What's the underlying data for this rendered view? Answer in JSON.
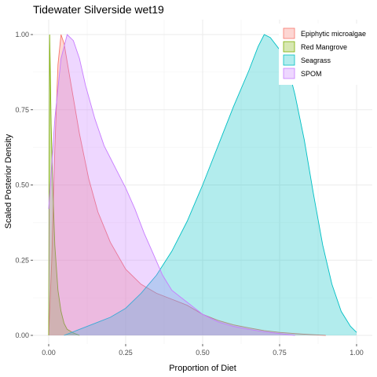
{
  "chart_data": {
    "type": "area",
    "title": "Tidewater Silverside wet19",
    "xlabel": "Proportion of Diet",
    "ylabel": "Scaled Posterior Density",
    "xlim": [
      0,
      1
    ],
    "ylim": [
      0,
      1
    ],
    "x_ticks": [
      0,
      0.25,
      0.5,
      0.75,
      1
    ],
    "x_tick_labels": [
      "0.00",
      "0.25",
      "0.50",
      "0.75",
      "1.00"
    ],
    "y_ticks": [
      0,
      0.25,
      0.5,
      0.75,
      1
    ],
    "y_tick_labels": [
      "0.00",
      "0.25",
      "0.50",
      "0.75",
      "1.00"
    ],
    "grid": true,
    "legend_position": "top-right",
    "series": [
      {
        "name": "Epiphytic microalgae",
        "fill": "#f8766d",
        "line": "#f8766d",
        "points": [
          [
            0.0,
            0.0
          ],
          [
            0.01,
            0.25
          ],
          [
            0.02,
            0.62
          ],
          [
            0.03,
            0.9
          ],
          [
            0.04,
            1.0
          ],
          [
            0.05,
            0.97
          ],
          [
            0.07,
            0.85
          ],
          [
            0.1,
            0.67
          ],
          [
            0.13,
            0.52
          ],
          [
            0.16,
            0.41
          ],
          [
            0.2,
            0.31
          ],
          [
            0.25,
            0.22
          ],
          [
            0.3,
            0.17
          ],
          [
            0.35,
            0.14
          ],
          [
            0.4,
            0.12
          ],
          [
            0.45,
            0.1
          ],
          [
            0.5,
            0.07
          ],
          [
            0.55,
            0.05
          ],
          [
            0.6,
            0.035
          ],
          [
            0.65,
            0.025
          ],
          [
            0.7,
            0.016
          ],
          [
            0.75,
            0.01
          ],
          [
            0.8,
            0.006
          ],
          [
            0.85,
            0.003
          ],
          [
            0.9,
            0.0
          ]
        ]
      },
      {
        "name": "Red Mangrove",
        "fill": "#7cae00",
        "line": "#7cae00",
        "points": [
          [
            0.0,
            0.0
          ],
          [
            0.003,
            1.0
          ],
          [
            0.008,
            0.7
          ],
          [
            0.013,
            0.5
          ],
          [
            0.02,
            0.3
          ],
          [
            0.03,
            0.15
          ],
          [
            0.04,
            0.08
          ],
          [
            0.05,
            0.04
          ],
          [
            0.06,
            0.02
          ],
          [
            0.08,
            0.008
          ],
          [
            0.1,
            0.0
          ]
        ]
      },
      {
        "name": "Seagrass",
        "fill": "#00bfc4",
        "line": "#00bfc4",
        "points": [
          [
            0.05,
            0.0
          ],
          [
            0.1,
            0.02
          ],
          [
            0.15,
            0.04
          ],
          [
            0.2,
            0.06
          ],
          [
            0.25,
            0.09
          ],
          [
            0.3,
            0.14
          ],
          [
            0.35,
            0.2
          ],
          [
            0.4,
            0.28
          ],
          [
            0.45,
            0.38
          ],
          [
            0.5,
            0.5
          ],
          [
            0.55,
            0.63
          ],
          [
            0.6,
            0.76
          ],
          [
            0.65,
            0.88
          ],
          [
            0.68,
            0.96
          ],
          [
            0.7,
            1.0
          ],
          [
            0.72,
            0.99
          ],
          [
            0.75,
            0.95
          ],
          [
            0.78,
            0.88
          ],
          [
            0.8,
            0.8
          ],
          [
            0.83,
            0.65
          ],
          [
            0.86,
            0.47
          ],
          [
            0.89,
            0.3
          ],
          [
            0.92,
            0.17
          ],
          [
            0.95,
            0.08
          ],
          [
            0.98,
            0.03
          ],
          [
            1.0,
            0.01
          ]
        ]
      },
      {
        "name": "SPOM",
        "fill": "#c77cff",
        "line": "#c77cff",
        "points": [
          [
            0.0,
            0.42
          ],
          [
            0.02,
            0.72
          ],
          [
            0.04,
            0.92
          ],
          [
            0.06,
            1.0
          ],
          [
            0.08,
            0.98
          ],
          [
            0.1,
            0.92
          ],
          [
            0.12,
            0.83
          ],
          [
            0.15,
            0.72
          ],
          [
            0.18,
            0.63
          ],
          [
            0.2,
            0.59
          ],
          [
            0.22,
            0.55
          ],
          [
            0.25,
            0.49
          ],
          [
            0.28,
            0.42
          ],
          [
            0.31,
            0.34
          ],
          [
            0.34,
            0.27
          ],
          [
            0.37,
            0.2
          ],
          [
            0.4,
            0.15
          ],
          [
            0.45,
            0.11
          ],
          [
            0.5,
            0.07
          ],
          [
            0.55,
            0.045
          ],
          [
            0.6,
            0.03
          ],
          [
            0.65,
            0.02
          ],
          [
            0.7,
            0.012
          ],
          [
            0.75,
            0.006
          ],
          [
            0.8,
            0.0
          ]
        ]
      }
    ]
  }
}
